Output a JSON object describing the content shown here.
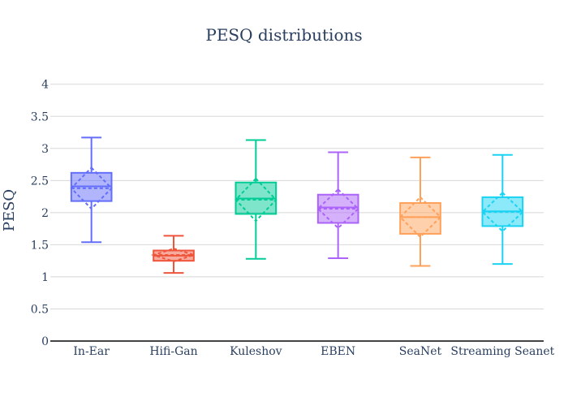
{
  "chart_data": {
    "type": "box",
    "title": "PESQ distributions",
    "xlabel": "",
    "ylabel": "PESQ",
    "ylim": [
      0,
      4.3
    ],
    "yticks": [
      "0",
      "0.5",
      "1",
      "1.5",
      "2",
      "2.5",
      "3",
      "3.5",
      "4"
    ],
    "grid": true,
    "legend": "none",
    "categories": [
      "In-Ear",
      "Hifi-Gan",
      "Kuleshov",
      "EBEN",
      "SeaNet",
      "Streaming Seanet"
    ],
    "series": [
      {
        "category": "In-Ear",
        "color": "#636efa",
        "min": 1.54,
        "q1": 2.18,
        "median": 2.41,
        "q3": 2.62,
        "max": 3.17,
        "mean": 2.38,
        "sd": 0.32
      },
      {
        "category": "Hifi-Gan",
        "color": "#ef553b",
        "min": 1.06,
        "q1": 1.25,
        "median": 1.33,
        "q3": 1.41,
        "max": 1.64,
        "mean": 1.34,
        "sd": 0.1
      },
      {
        "category": "Kuleshov",
        "color": "#00cc96",
        "min": 1.28,
        "q1": 1.98,
        "median": 2.22,
        "q3": 2.47,
        "max": 3.13,
        "mean": 2.2,
        "sd": 0.33
      },
      {
        "category": "EBEN",
        "color": "#ab63fa",
        "min": 1.29,
        "q1": 1.84,
        "median": 2.08,
        "q3": 2.28,
        "max": 2.94,
        "mean": 2.06,
        "sd": 0.3
      },
      {
        "category": "SeaNet",
        "color": "#ffa15a",
        "min": 1.17,
        "q1": 1.67,
        "median": 1.93,
        "q3": 2.15,
        "max": 2.86,
        "mean": 1.93,
        "sd": 0.31
      },
      {
        "category": "Streaming Seanet",
        "color": "#19d3f3",
        "min": 1.2,
        "q1": 1.79,
        "median": 2.02,
        "q3": 2.24,
        "max": 2.9,
        "mean": 2.01,
        "sd": 0.3
      }
    ]
  }
}
